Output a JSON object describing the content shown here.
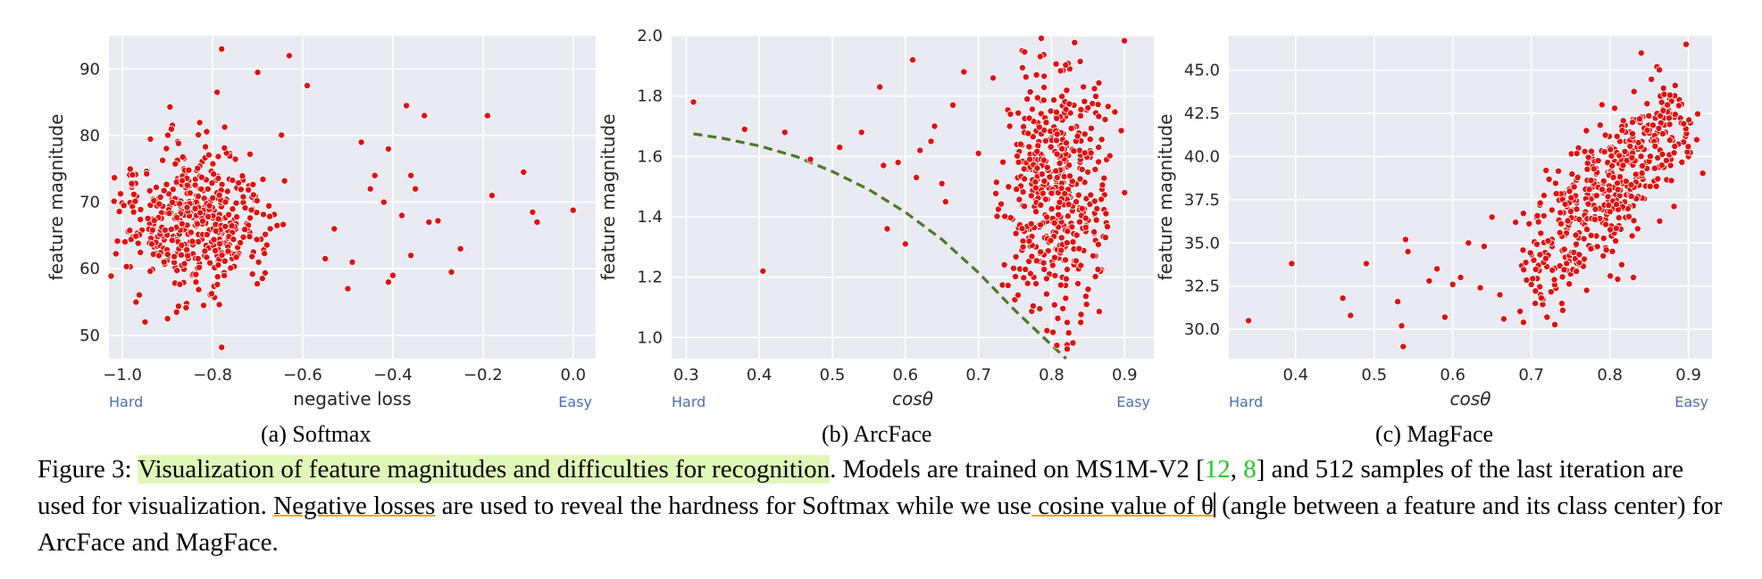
{
  "chart_data": [
    {
      "type": "scatter",
      "subcaption": "(a) Softmax",
      "xlabel": "negative loss",
      "ylabel": "feature magnitude",
      "xlim": [
        -1.03,
        0.05
      ],
      "ylim": [
        46.5,
        95.0
      ],
      "xticks": [
        "−1.0",
        "−0.8",
        "−0.6",
        "−0.4",
        "−0.2",
        "0.0"
      ],
      "xtick_values": [
        -1.0,
        -0.8,
        -0.6,
        -0.4,
        -0.2,
        0.0
      ],
      "yticks": [
        "50",
        "60",
        "70",
        "80",
        "90"
      ],
      "ytick_values": [
        50,
        60,
        70,
        80,
        90
      ],
      "left_corner": "Hard",
      "right_corner": "Easy",
      "grid": true,
      "point_color": "#e01010",
      "samples": 512,
      "cluster": {
        "x_center": -0.84,
        "x_spread": 0.08,
        "y_center": 67.5,
        "y_spread": 5.2
      },
      "points": [
        [
          -0.78,
          93.0
        ],
        [
          -0.63,
          92.0
        ],
        [
          -0.79,
          86.5
        ],
        [
          -0.7,
          89.5
        ],
        [
          -0.59,
          87.5
        ],
        [
          -0.37,
          84.5
        ],
        [
          -0.33,
          83.0
        ],
        [
          -0.19,
          83.0
        ],
        [
          -0.11,
          74.5
        ],
        [
          -0.09,
          68.5
        ],
        [
          -0.08,
          67.0
        ],
        [
          0.0,
          68.8
        ],
        [
          -0.18,
          71.0
        ],
        [
          -0.25,
          63.0
        ],
        [
          -0.27,
          59.5
        ],
        [
          -0.32,
          67.0
        ],
        [
          -0.3,
          67.2
        ],
        [
          -0.36,
          74.0
        ],
        [
          -0.35,
          72.0
        ],
        [
          -0.41,
          78.0
        ],
        [
          -0.4,
          59.0
        ],
        [
          -0.41,
          58.0
        ],
        [
          -0.42,
          70.0
        ],
        [
          -0.5,
          57.0
        ],
        [
          -0.49,
          61.0
        ],
        [
          -0.55,
          61.5
        ],
        [
          -0.53,
          66.0
        ],
        [
          -0.47,
          79.0
        ],
        [
          -0.45,
          72.0
        ],
        [
          -0.44,
          74.0
        ],
        [
          -0.36,
          62.0
        ],
        [
          -0.38,
          68.0
        ],
        [
          -0.97,
          55.0
        ],
        [
          -0.95,
          52.0
        ],
        [
          -0.9,
          52.5
        ],
        [
          -0.82,
          54.5
        ],
        [
          -0.78,
          48.2
        ],
        [
          -0.88,
          53.5
        ],
        [
          -0.79,
          62.0
        ]
      ]
    },
    {
      "type": "scatter",
      "subcaption": "(b) ArcFace",
      "xlabel": "cosθ",
      "ylabel": "feature magnitude",
      "xlim": [
        0.28,
        0.94
      ],
      "ylim": [
        0.93,
        2.0
      ],
      "xticks": [
        "0.3",
        "0.4",
        "0.5",
        "0.6",
        "0.7",
        "0.8",
        "0.9"
      ],
      "xtick_values": [
        0.3,
        0.4,
        0.5,
        0.6,
        0.7,
        0.8,
        0.9
      ],
      "yticks": [
        "1.0",
        "1.2",
        "1.4",
        "1.6",
        "1.8",
        "2.0"
      ],
      "ytick_values": [
        1.0,
        1.2,
        1.4,
        1.6,
        1.8,
        2.0
      ],
      "left_corner": "Hard",
      "right_corner": "Easy",
      "grid": true,
      "point_color": "#e01010",
      "curve_color": "#4a7a2a",
      "curve": [
        [
          0.31,
          1.675
        ],
        [
          0.35,
          1.66
        ],
        [
          0.4,
          1.635
        ],
        [
          0.45,
          1.6
        ],
        [
          0.5,
          1.55
        ],
        [
          0.55,
          1.49
        ],
        [
          0.6,
          1.415
        ],
        [
          0.65,
          1.325
        ],
        [
          0.7,
          1.215
        ],
        [
          0.75,
          1.09
        ],
        [
          0.8,
          0.975
        ],
        [
          0.82,
          0.93
        ]
      ],
      "cluster": {
        "x_center": 0.805,
        "x_spread": 0.035,
        "y_center": 1.49,
        "y_spread": 0.2
      },
      "points": [
        [
          0.31,
          1.78
        ],
        [
          0.38,
          1.69
        ],
        [
          0.405,
          1.22
        ],
        [
          0.435,
          1.68
        ],
        [
          0.47,
          1.59
        ],
        [
          0.51,
          1.63
        ],
        [
          0.54,
          1.68
        ],
        [
          0.565,
          1.83
        ],
        [
          0.57,
          1.57
        ],
        [
          0.575,
          1.36
        ],
        [
          0.59,
          1.58
        ],
        [
          0.6,
          1.31
        ],
        [
          0.61,
          1.92
        ],
        [
          0.615,
          1.53
        ],
        [
          0.62,
          1.62
        ],
        [
          0.635,
          1.65
        ],
        [
          0.64,
          1.7
        ],
        [
          0.65,
          1.51
        ],
        [
          0.655,
          1.45
        ],
        [
          0.665,
          1.77
        ],
        [
          0.68,
          1.88
        ],
        [
          0.7,
          1.61
        ],
        [
          0.72,
          1.86
        ],
        [
          0.76,
          1.95
        ],
        [
          0.9,
          1.48
        ],
        [
          0.875,
          1.38
        ],
        [
          0.86,
          1.27
        ],
        [
          0.85,
          1.16
        ],
        [
          0.84,
          1.05
        ],
        [
          0.83,
          0.98
        ],
        [
          0.84,
          1.75
        ],
        [
          0.825,
          1.89
        ]
      ]
    },
    {
      "type": "scatter",
      "subcaption": "(c) MagFace",
      "xlabel": "cosθ",
      "ylabel": "feature magnitude",
      "xlim": [
        0.315,
        0.93
      ],
      "ylim": [
        28.3,
        47.0
      ],
      "xticks": [
        "0.4",
        "0.5",
        "0.6",
        "0.7",
        "0.8",
        "0.9"
      ],
      "xtick_values": [
        0.4,
        0.5,
        0.6,
        0.7,
        0.8,
        0.9
      ],
      "yticks": [
        "30.0",
        "32.5",
        "35.0",
        "37.5",
        "40.0",
        "42.5",
        "45.0"
      ],
      "ytick_values": [
        30.0,
        32.5,
        35.0,
        37.5,
        40.0,
        42.5,
        45.0
      ],
      "left_corner": "Hard",
      "right_corner": "Easy",
      "grid": true,
      "point_color": "#e01010",
      "cluster": {
        "x_slope_start": [
          0.72,
          34.0
        ],
        "x_slope_end": [
          0.88,
          42.5
        ],
        "x_spread": 0.05,
        "y_spread": 1.6
      },
      "points": [
        [
          0.34,
          30.5
        ],
        [
          0.395,
          33.8
        ],
        [
          0.46,
          31.8
        ],
        [
          0.47,
          30.8
        ],
        [
          0.49,
          33.8
        ],
        [
          0.53,
          31.6
        ],
        [
          0.535,
          30.2
        ],
        [
          0.537,
          29.0
        ],
        [
          0.54,
          35.2
        ],
        [
          0.543,
          34.5
        ],
        [
          0.57,
          32.8
        ],
        [
          0.58,
          33.5
        ],
        [
          0.59,
          30.7
        ],
        [
          0.6,
          32.6
        ],
        [
          0.61,
          33.0
        ],
        [
          0.62,
          35.0
        ],
        [
          0.635,
          32.4
        ],
        [
          0.64,
          34.8
        ],
        [
          0.65,
          36.5
        ],
        [
          0.66,
          32.0
        ],
        [
          0.665,
          30.6
        ],
        [
          0.68,
          36.2
        ],
        [
          0.685,
          31.0
        ],
        [
          0.69,
          30.4
        ],
        [
          0.7,
          32.6
        ],
        [
          0.705,
          31.5
        ],
        [
          0.71,
          33.4
        ],
        [
          0.72,
          30.7
        ],
        [
          0.74,
          31.1
        ],
        [
          0.75,
          33.2
        ],
        [
          0.84,
          46.0
        ],
        [
          0.86,
          45.2
        ],
        [
          0.897,
          46.5
        ],
        [
          0.9,
          40.0
        ],
        [
          0.89,
          42.0
        ],
        [
          0.83,
          33.0
        ],
        [
          0.81,
          32.9
        ],
        [
          0.79,
          43.0
        ],
        [
          0.77,
          41.5
        ],
        [
          0.76,
          40.5
        ]
      ]
    }
  ],
  "caption": {
    "figure_label": "Figure 3:",
    "highlighted": "Visualization of feature magnitudes and difficulties for recognition",
    "text_1": ". Models are trained on MS1M-V2 [",
    "cite_1": "12",
    "text_2": ", ",
    "cite_2": "8",
    "text_3": "] and 512 samples of the last iteration are used for visualization. ",
    "underlined_1": "Negative losses",
    "text_4": " are used to reveal the hardness for Softmax while we use",
    "underlined_2": " cosine value of θ",
    "text_5": " (angle between a feature and its class center) for ArcFace and MagFace."
  }
}
